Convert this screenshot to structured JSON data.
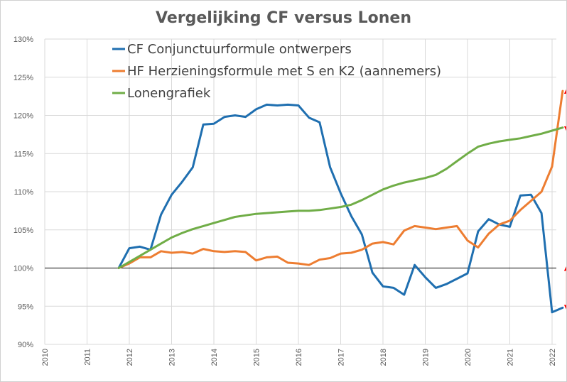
{
  "chart_data": {
    "type": "line",
    "title": "Vergelijking CF versus Lonen",
    "xlabel": "",
    "ylabel": "",
    "xlim": [
      2010,
      2022.35
    ],
    "ylim": [
      90,
      130
    ],
    "y_ticks": [
      90,
      95,
      100,
      105,
      110,
      115,
      120,
      125,
      130
    ],
    "y_tick_labels": [
      "90%",
      "95%",
      "100%",
      "105%",
      "110%",
      "115%",
      "120%",
      "125%",
      "130%"
    ],
    "x_ticks": [
      2010,
      2011,
      2012,
      2013,
      2014,
      2015,
      2016,
      2017,
      2018,
      2019,
      2020,
      2021,
      2022
    ],
    "x_tick_labels": [
      "2010",
      "2011",
      "2012",
      "2013",
      "2014",
      "2015",
      "2016",
      "2017",
      "2018",
      "2019",
      "2020",
      "2021",
      "2022"
    ],
    "grid": true,
    "legend_position": "top-left",
    "reference_line": {
      "y": 100,
      "color": "#000000"
    },
    "series": [
      {
        "name": "CF Conjunctuurformule ontwerpers",
        "color": "#1F6FB0",
        "x": [
          2011.75,
          2012.0,
          2012.25,
          2012.5,
          2012.75,
          2013.0,
          2013.25,
          2013.5,
          2013.75,
          2014.0,
          2014.25,
          2014.5,
          2014.75,
          2015.0,
          2015.25,
          2015.5,
          2015.75,
          2016.0,
          2016.25,
          2016.5,
          2016.75,
          2017.0,
          2017.25,
          2017.5,
          2017.75,
          2018.0,
          2018.25,
          2018.5,
          2018.75,
          2019.0,
          2019.25,
          2019.5,
          2019.75,
          2020.0,
          2020.25,
          2020.5,
          2020.75,
          2021.0,
          2021.25,
          2021.5,
          2021.75,
          2022.0,
          2022.25
        ],
        "y": [
          100.0,
          102.6,
          102.8,
          102.4,
          107.0,
          109.6,
          111.3,
          113.2,
          118.8,
          118.9,
          119.8,
          120.0,
          119.8,
          120.8,
          121.4,
          121.3,
          121.4,
          121.3,
          119.7,
          119.1,
          113.2,
          109.8,
          106.8,
          104.4,
          99.4,
          97.6,
          97.4,
          96.5,
          100.4,
          98.8,
          97.4,
          97.9,
          98.6,
          99.3,
          104.8,
          106.4,
          105.7,
          105.4,
          109.5,
          109.6,
          107.2,
          94.2,
          94.8
        ]
      },
      {
        "name": "HF Herzieningsformule met S en K2 (aannemers)",
        "color": "#ED7D31",
        "x": [
          2011.75,
          2012.0,
          2012.25,
          2012.5,
          2012.75,
          2013.0,
          2013.25,
          2013.5,
          2013.75,
          2014.0,
          2014.25,
          2014.5,
          2014.75,
          2015.0,
          2015.25,
          2015.5,
          2015.75,
          2016.0,
          2016.25,
          2016.5,
          2016.75,
          2017.0,
          2017.25,
          2017.5,
          2017.75,
          2018.0,
          2018.25,
          2018.5,
          2018.75,
          2019.0,
          2019.25,
          2019.5,
          2019.75,
          2020.0,
          2020.25,
          2020.5,
          2020.75,
          2021.0,
          2021.25,
          2021.5,
          2021.75,
          2022.0,
          2022.25
        ],
        "y": [
          100.0,
          100.6,
          101.4,
          101.4,
          102.2,
          102.0,
          102.1,
          101.9,
          102.5,
          102.2,
          102.1,
          102.2,
          102.1,
          101.0,
          101.4,
          101.5,
          100.7,
          100.6,
          100.4,
          101.1,
          101.3,
          101.9,
          102.0,
          102.4,
          103.2,
          103.4,
          103.1,
          104.9,
          105.5,
          105.3,
          105.1,
          105.3,
          105.5,
          103.6,
          102.7,
          104.5,
          105.7,
          106.2,
          107.6,
          108.8,
          110.0,
          113.3,
          123.2
        ]
      },
      {
        "name": "Lonengrafiek",
        "color": "#70AD47",
        "x": [
          2011.75,
          2012.0,
          2012.25,
          2012.5,
          2012.75,
          2013.0,
          2013.25,
          2013.5,
          2013.75,
          2014.0,
          2014.25,
          2014.5,
          2014.75,
          2015.0,
          2015.25,
          2015.5,
          2015.75,
          2016.0,
          2016.25,
          2016.5,
          2016.75,
          2017.0,
          2017.25,
          2017.5,
          2017.75,
          2018.0,
          2018.25,
          2018.5,
          2018.75,
          2019.0,
          2019.25,
          2019.5,
          2019.75,
          2020.0,
          2020.25,
          2020.5,
          2020.75,
          2021.0,
          2021.25,
          2021.5,
          2021.75,
          2022.0,
          2022.25
        ],
        "y": [
          100.0,
          100.8,
          101.6,
          102.4,
          103.2,
          104.0,
          104.6,
          105.1,
          105.5,
          105.9,
          106.3,
          106.7,
          106.9,
          107.1,
          107.2,
          107.3,
          107.4,
          107.5,
          107.5,
          107.6,
          107.8,
          108.0,
          108.3,
          108.9,
          109.6,
          110.3,
          110.8,
          111.2,
          111.5,
          111.8,
          112.2,
          113.0,
          114.0,
          115.0,
          115.9,
          116.3,
          116.6,
          116.8,
          117.0,
          117.3,
          117.6,
          118.0,
          118.4
        ]
      }
    ],
    "annotations": [
      {
        "type": "double-arrow",
        "color": "#FF0000",
        "x": 2022.35,
        "y_from": 118.2,
        "y_to": 123.2
      },
      {
        "type": "double-arrow",
        "color": "#FF0000",
        "x": 2022.35,
        "y_from": 94.8,
        "y_to": 100.0
      }
    ]
  }
}
